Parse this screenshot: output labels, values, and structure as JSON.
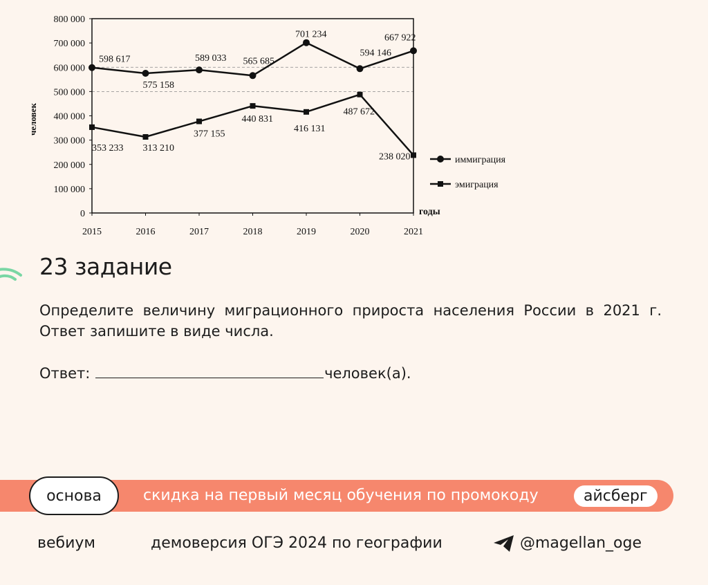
{
  "chart_data": {
    "type": "line",
    "title": "",
    "xlabel": "годы",
    "ylabel": "человек",
    "x": [
      2015,
      2016,
      2017,
      2018,
      2019,
      2020,
      2021
    ],
    "x_tick_labels": [
      "2015",
      "2016",
      "2017",
      "2018",
      "2019",
      "2020",
      "2021"
    ],
    "ylim": [
      0,
      800000
    ],
    "y_ticks": [
      0,
      100000,
      200000,
      300000,
      400000,
      500000,
      600000,
      700000,
      800000
    ],
    "y_tick_labels": [
      "0",
      "100 000",
      "200 000",
      "300 000",
      "400 000",
      "500 000",
      "600 000",
      "700 000",
      "800 000"
    ],
    "reference_lines": [
      500000,
      600000
    ],
    "grid": false,
    "legend_position": "right",
    "series": [
      {
        "name": "иммиграция",
        "marker": "circle",
        "values": [
          598617,
          575158,
          589033,
          565685,
          701234,
          594146,
          667922
        ],
        "labels": [
          "598 617",
          "575 158",
          "589 033",
          "565 685",
          "701 234",
          "594 146",
          "667 922"
        ]
      },
      {
        "name": "эмиграция",
        "marker": "square",
        "values": [
          353233,
          313210,
          377155,
          440831,
          416131,
          487672,
          238020
        ],
        "labels": [
          "353 233",
          "313 210",
          "377 155",
          "440 831",
          "416 131",
          "487 672",
          "238 020"
        ]
      }
    ]
  },
  "task": {
    "title": "23 задание",
    "text": "Определите величину миграционного прироста населения России в 2021 г. Ответ запишите в виде числа.",
    "answer_label": "Ответ:",
    "answer_unit": "человек(а)."
  },
  "promo": {
    "brand": "основа",
    "text": "скидка на первый месяц обучения по промокоду",
    "code": "айсберг"
  },
  "footer": {
    "left": "вебиум",
    "center": "демоверсия ОГЭ 2024 по географии",
    "handle": "@magellan_oge",
    "icon": "telegram-icon"
  },
  "colors": {
    "background": "#fdf5ee",
    "promo_bar": "#f6876d",
    "accent_green": "#79d6a4"
  }
}
